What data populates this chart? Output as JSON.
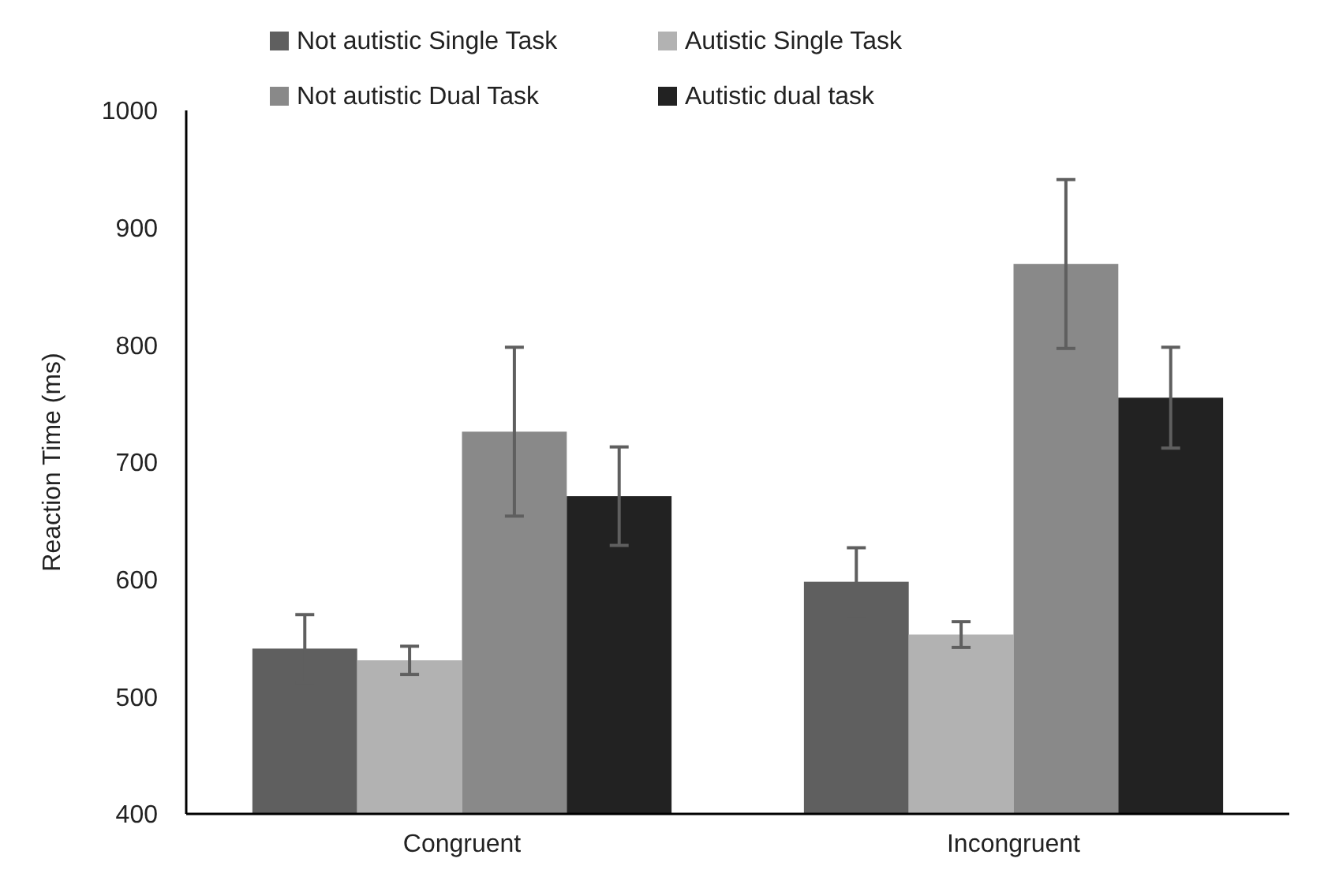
{
  "chart_data": {
    "type": "bar",
    "ylabel": "Reaction Time (ms)",
    "categories": [
      "Congruent",
      "Incongruent"
    ],
    "series": [
      {
        "name": "Not autistic Single Task",
        "color": "#5f5f5f",
        "values": [
          541,
          598
        ],
        "errors": [
          29,
          29
        ]
      },
      {
        "name": "Autistic Single Task",
        "color": "#b2b2b2",
        "values": [
          531,
          553
        ],
        "errors": [
          12,
          11
        ]
      },
      {
        "name": "Not autistic Dual Task",
        "color": "#898989",
        "values": [
          726,
          869
        ],
        "errors": [
          72,
          72
        ]
      },
      {
        "name": "Autistic dual task",
        "color": "#222222",
        "values": [
          671,
          755
        ],
        "errors": [
          42,
          43
        ]
      }
    ],
    "ylim": [
      400,
      1000
    ],
    "yticks": [
      400,
      500,
      600,
      700,
      800,
      900,
      1000
    ],
    "grid": false,
    "legend": "top"
  }
}
